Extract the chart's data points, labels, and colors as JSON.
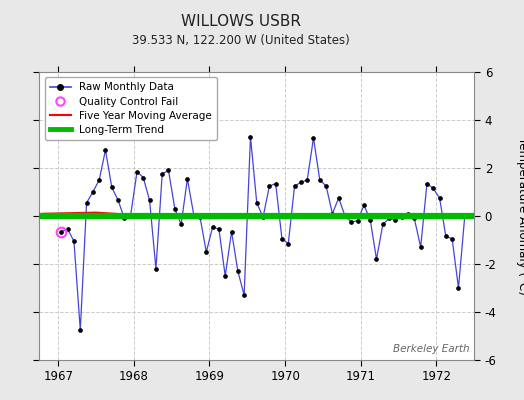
{
  "title": "WILLOWS USBR",
  "subtitle": "39.533 N, 122.200 W (United States)",
  "ylabel": "Temperature Anomaly (°C)",
  "watermark": "Berkeley Earth",
  "ylim": [
    -6,
    6
  ],
  "yticks": [
    -6,
    -4,
    -2,
    0,
    2,
    4,
    6
  ],
  "bg_color": "#e8e8e8",
  "plot_bg_color": "#ffffff",
  "line_color": "#4444dd",
  "marker_color": "#000000",
  "qc_color": "#ff44ff",
  "ma_color": "#ff0000",
  "trend_color": "#00bb00",
  "trend_y": 0.0,
  "raw_data": [
    [
      1967.042,
      -0.65
    ],
    [
      1967.125,
      -0.55
    ],
    [
      1967.208,
      -1.05
    ],
    [
      1967.292,
      -4.75
    ],
    [
      1967.375,
      0.55
    ],
    [
      1967.458,
      1.0
    ],
    [
      1967.542,
      1.5
    ],
    [
      1967.625,
      2.75
    ],
    [
      1967.708,
      1.2
    ],
    [
      1967.792,
      0.65
    ],
    [
      1967.875,
      -0.1
    ],
    [
      1967.958,
      0.05
    ],
    [
      1968.042,
      1.85
    ],
    [
      1968.125,
      1.6
    ],
    [
      1968.208,
      0.65
    ],
    [
      1968.292,
      -2.2
    ],
    [
      1968.375,
      1.75
    ],
    [
      1968.458,
      1.9
    ],
    [
      1968.542,
      0.3
    ],
    [
      1968.625,
      -0.35
    ],
    [
      1968.708,
      1.55
    ],
    [
      1968.792,
      0.05
    ],
    [
      1968.875,
      -0.05
    ],
    [
      1968.958,
      -1.5
    ],
    [
      1969.042,
      -0.45
    ],
    [
      1969.125,
      -0.55
    ],
    [
      1969.208,
      -2.5
    ],
    [
      1969.292,
      -0.65
    ],
    [
      1969.375,
      -2.3
    ],
    [
      1969.458,
      -3.3
    ],
    [
      1969.542,
      3.3
    ],
    [
      1969.625,
      0.55
    ],
    [
      1969.708,
      -0.05
    ],
    [
      1969.792,
      1.25
    ],
    [
      1969.875,
      1.35
    ],
    [
      1969.958,
      -0.95
    ],
    [
      1970.042,
      -1.15
    ],
    [
      1970.125,
      1.25
    ],
    [
      1970.208,
      1.4
    ],
    [
      1970.292,
      1.5
    ],
    [
      1970.375,
      3.25
    ],
    [
      1970.458,
      1.5
    ],
    [
      1970.542,
      1.25
    ],
    [
      1970.625,
      0.1
    ],
    [
      1970.708,
      0.75
    ],
    [
      1970.792,
      0.0
    ],
    [
      1970.875,
      -0.25
    ],
    [
      1970.958,
      -0.2
    ],
    [
      1971.042,
      0.45
    ],
    [
      1971.125,
      -0.15
    ],
    [
      1971.208,
      -1.8
    ],
    [
      1971.292,
      -0.35
    ],
    [
      1971.375,
      -0.1
    ],
    [
      1971.458,
      -0.15
    ],
    [
      1971.542,
      -0.05
    ],
    [
      1971.625,
      0.1
    ],
    [
      1971.708,
      -0.1
    ],
    [
      1971.792,
      -1.3
    ],
    [
      1971.875,
      1.35
    ],
    [
      1971.958,
      1.15
    ],
    [
      1972.042,
      0.75
    ],
    [
      1972.125,
      -0.85
    ],
    [
      1972.208,
      -0.95
    ],
    [
      1972.292,
      -3.0
    ],
    [
      1972.375,
      0.0
    ],
    [
      1972.458,
      0.0
    ]
  ],
  "qc_fail": [
    [
      1967.042,
      -0.65
    ]
  ],
  "ma_data": [
    [
      1966.8,
      0.1
    ],
    [
      1967.5,
      0.15
    ],
    [
      1968.0,
      0.05
    ],
    [
      1968.5,
      -0.05
    ],
    [
      1969.0,
      -0.1
    ],
    [
      1969.5,
      -0.08
    ],
    [
      1970.0,
      0.0
    ],
    [
      1970.5,
      0.05
    ],
    [
      1971.0,
      0.02
    ],
    [
      1971.5,
      0.0
    ],
    [
      1972.0,
      -0.02
    ],
    [
      1972.5,
      -0.05
    ]
  ],
  "xlim": [
    1966.75,
    1972.5
  ],
  "xticks": [
    1967,
    1968,
    1969,
    1970,
    1971,
    1972
  ],
  "grid_color": "#cccccc",
  "grid_style": "--"
}
